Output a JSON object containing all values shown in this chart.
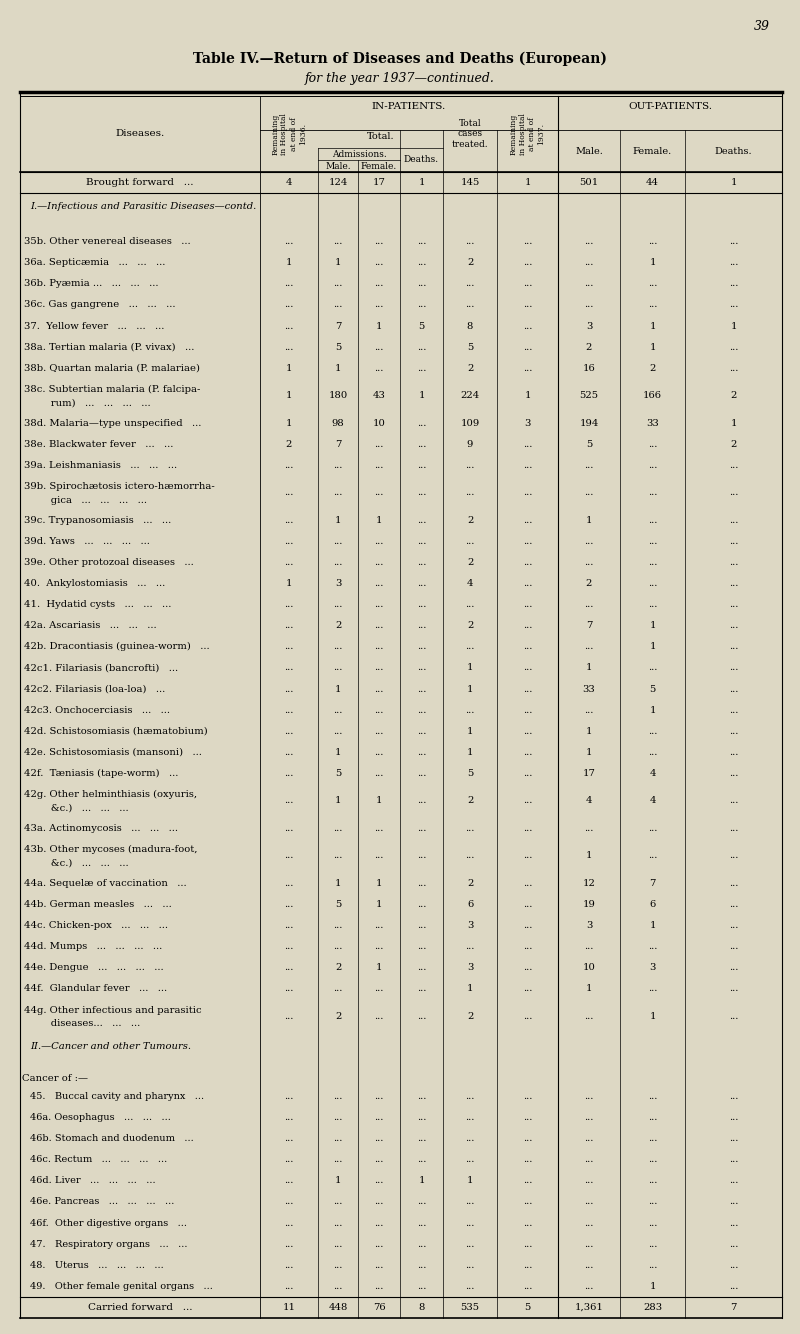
{
  "page_number": "39",
  "title_line1": "Table IV.—Return of Diseases and Deaths (European)",
  "title_line2": "for the year 1937—continued.",
  "bg_color": "#ddd8c4",
  "rows": [
    {
      "text": "Brought forward",
      "suffix": "...",
      "type": "forward",
      "rem36": "4",
      "male": "124",
      "female": "17",
      "deaths": "1",
      "total": "145",
      "rem37": "1",
      "op_male": "501",
      "op_female": "44",
      "op_deaths": "1"
    },
    {
      "text": "I.—Infectious and Parasitic Diseases—contd.",
      "line2": "",
      "type": "section",
      "rem36": "",
      "male": "",
      "female": "",
      "deaths": "",
      "total": "",
      "rem37": "",
      "op_male": "",
      "op_female": "",
      "op_deaths": ""
    },
    {
      "text": "35b. Other venereal diseases   ...",
      "type": "normal",
      "rem36": "...",
      "male": "...",
      "female": "...",
      "deaths": "...",
      "total": "...",
      "rem37": "...",
      "op_male": "...",
      "op_female": "...",
      "op_deaths": "..."
    },
    {
      "text": "36a. Septicæmia   ...   ...   ...",
      "type": "normal",
      "rem36": "1",
      "male": "1",
      "female": "...",
      "deaths": "...",
      "total": "2",
      "rem37": "...",
      "op_male": "...",
      "op_female": "1",
      "op_deaths": "..."
    },
    {
      "text": "36b. Pyæmia ...   ...   ...   ...",
      "type": "normal",
      "rem36": "...",
      "male": "...",
      "female": "...",
      "deaths": "...",
      "total": "...",
      "rem37": "...",
      "op_male": "...",
      "op_female": "...",
      "op_deaths": "..."
    },
    {
      "text": "36c. Gas gangrene   ...   ...   ...",
      "type": "normal",
      "rem36": "...",
      "male": "...",
      "female": "...",
      "deaths": "...",
      "total": "...",
      "rem37": "...",
      "op_male": "...",
      "op_female": "...",
      "op_deaths": "..."
    },
    {
      "text": "37.  Yellow fever   ...   ...   ...",
      "type": "normal",
      "rem36": "...",
      "male": "7",
      "female": "1",
      "deaths": "5",
      "total": "8",
      "rem37": "...",
      "op_male": "3",
      "op_female": "1",
      "op_deaths": "1"
    },
    {
      "text": "38a. Tertian malaria (P. vivax)   ...",
      "type": "normal",
      "rem36": "...",
      "male": "5",
      "female": "...",
      "deaths": "...",
      "total": "5",
      "rem37": "...",
      "op_male": "2",
      "op_female": "1",
      "op_deaths": "..."
    },
    {
      "text": "38b. Quartan malaria (P. malariae)",
      "type": "normal",
      "rem36": "1",
      "male": "1",
      "female": "...",
      "deaths": "...",
      "total": "2",
      "rem37": "...",
      "op_male": "16",
      "op_female": "2",
      "op_deaths": "..."
    },
    {
      "text": "38c. Subtertian malaria (P. falcipa-",
      "line2": "      rum)   ...   ...   ...   ...",
      "type": "normal2",
      "rem36": "1",
      "male": "180",
      "female": "43",
      "deaths": "1",
      "total": "224",
      "rem37": "1",
      "op_male": "525",
      "op_female": "166",
      "op_deaths": "2"
    },
    {
      "text": "38d. Malaria—type unspecified   ...",
      "type": "normal",
      "rem36": "1",
      "male": "98",
      "female": "10",
      "deaths": "...",
      "total": "109",
      "rem37": "3",
      "op_male": "194",
      "op_female": "33",
      "op_deaths": "1"
    },
    {
      "text": "38e. Blackwater fever   ...   ...",
      "type": "normal",
      "rem36": "2",
      "male": "7",
      "female": "...",
      "deaths": "...",
      "total": "9",
      "rem37": "...",
      "op_male": "5",
      "op_female": "...",
      "op_deaths": "2"
    },
    {
      "text": "39a. Leishmaniasis   ...   ...   ...",
      "type": "normal",
      "rem36": "...",
      "male": "...",
      "female": "...",
      "deaths": "...",
      "total": "...",
      "rem37": "...",
      "op_male": "...",
      "op_female": "...",
      "op_deaths": "..."
    },
    {
      "text": "39b. Spirochætosis ictero-hæmorrha-",
      "line2": "      gica   ...   ...   ...   ...",
      "type": "normal2",
      "rem36": "...",
      "male": "...",
      "female": "...",
      "deaths": "...",
      "total": "...",
      "rem37": "...",
      "op_male": "...",
      "op_female": "...",
      "op_deaths": "..."
    },
    {
      "text": "39c. Trypanosomiasis   ...   ...",
      "type": "normal",
      "rem36": "...",
      "male": "1",
      "female": "1",
      "deaths": "...",
      "total": "2",
      "rem37": "...",
      "op_male": "1",
      "op_female": "...",
      "op_deaths": "..."
    },
    {
      "text": "39d. Yaws   ...   ...   ...   ...",
      "type": "normal",
      "rem36": "...",
      "male": "...",
      "female": "...",
      "deaths": "...",
      "total": "...",
      "rem37": "...",
      "op_male": "...",
      "op_female": "...",
      "op_deaths": "..."
    },
    {
      "text": "39e. Other protozoal diseases   ...",
      "type": "normal",
      "rem36": "...",
      "male": "...",
      "female": "...",
      "deaths": "...",
      "total": "2",
      "rem37": "...",
      "op_male": "...",
      "op_female": "...",
      "op_deaths": "..."
    },
    {
      "text": "40.  Ankylostomiasis   ...   ...",
      "type": "normal",
      "rem36": "1",
      "male": "3",
      "female": "...",
      "deaths": "...",
      "total": "4",
      "rem37": "...",
      "op_male": "2",
      "op_female": "...",
      "op_deaths": "..."
    },
    {
      "text": "41.  Hydatid cysts   ...   ...   ...",
      "type": "normal",
      "rem36": "...",
      "male": "...",
      "female": "...",
      "deaths": "...",
      "total": "...",
      "rem37": "...",
      "op_male": "...",
      "op_female": "...",
      "op_deaths": "..."
    },
    {
      "text": "42a. Ascariasis   ...   ...   ...",
      "type": "normal",
      "rem36": "...",
      "male": "2",
      "female": "...",
      "deaths": "...",
      "total": "2",
      "rem37": "...",
      "op_male": "7",
      "op_female": "1",
      "op_deaths": "..."
    },
    {
      "text": "42b. Dracontiasis (guinea-worm)   ...",
      "type": "normal",
      "rem36": "...",
      "male": "...",
      "female": "...",
      "deaths": "...",
      "total": "...",
      "rem37": "...",
      "op_male": "...",
      "op_female": "1",
      "op_deaths": "..."
    },
    {
      "text": "42c1. Filariasis (bancrofti)   ...",
      "type": "normal",
      "rem36": "...",
      "male": "...",
      "female": "...",
      "deaths": "...",
      "total": "1",
      "rem37": "...",
      "op_male": "1",
      "op_female": "...",
      "op_deaths": "..."
    },
    {
      "text": "42c2. Filariasis (loa-loa)   ...",
      "type": "normal",
      "rem36": "...",
      "male": "1",
      "female": "...",
      "deaths": "...",
      "total": "1",
      "rem37": "...",
      "op_male": "33",
      "op_female": "5",
      "op_deaths": "..."
    },
    {
      "text": "42c3. Onchocerciasis   ...   ...",
      "type": "normal",
      "rem36": "...",
      "male": "...",
      "female": "...",
      "deaths": "...",
      "total": "...",
      "rem37": "...",
      "op_male": "...",
      "op_female": "1",
      "op_deaths": "..."
    },
    {
      "text": "42d. Schistosomiasis (hæmatobium)",
      "type": "normal",
      "rem36": "...",
      "male": "...",
      "female": "...",
      "deaths": "...",
      "total": "1",
      "rem37": "...",
      "op_male": "1",
      "op_female": "...",
      "op_deaths": "..."
    },
    {
      "text": "42e. Schistosomiasis (mansoni)   ...",
      "type": "normal",
      "rem36": "...",
      "male": "1",
      "female": "...",
      "deaths": "...",
      "total": "1",
      "rem37": "...",
      "op_male": "1",
      "op_female": "...",
      "op_deaths": "..."
    },
    {
      "text": "42f.  Tæniasis (tape-worm)   ...",
      "type": "normal",
      "rem36": "...",
      "male": "5",
      "female": "...",
      "deaths": "...",
      "total": "5",
      "rem37": "...",
      "op_male": "17",
      "op_female": "4",
      "op_deaths": "..."
    },
    {
      "text": "42g. Other helminthiasis (oxyuris,",
      "line2": "      &c.)   ...   ...   ...",
      "type": "normal2",
      "rem36": "...",
      "male": "1",
      "female": "1",
      "deaths": "...",
      "total": "2",
      "rem37": "...",
      "op_male": "4",
      "op_female": "4",
      "op_deaths": "..."
    },
    {
      "text": "43a. Actinomycosis   ...   ...   ...",
      "type": "normal",
      "rem36": "...",
      "male": "...",
      "female": "...",
      "deaths": "...",
      "total": "...",
      "rem37": "...",
      "op_male": "...",
      "op_female": "...",
      "op_deaths": "..."
    },
    {
      "text": "43b. Other mycoses (madura-foot,",
      "line2": "      &c.)   ...   ...   ...",
      "type": "normal2",
      "rem36": "...",
      "male": "...",
      "female": "...",
      "deaths": "...",
      "total": "...",
      "rem37": "...",
      "op_male": "1",
      "op_female": "...",
      "op_deaths": "..."
    },
    {
      "text": "44a. Sequelæ of vaccination   ...",
      "type": "normal",
      "rem36": "...",
      "male": "1",
      "female": "1",
      "deaths": "...",
      "total": "2",
      "rem37": "...",
      "op_male": "12",
      "op_female": "7",
      "op_deaths": "..."
    },
    {
      "text": "44b. German measles   ...   ...",
      "type": "normal",
      "rem36": "...",
      "male": "5",
      "female": "1",
      "deaths": "...",
      "total": "6",
      "rem37": "...",
      "op_male": "19",
      "op_female": "6",
      "op_deaths": "..."
    },
    {
      "text": "44c. Chicken-pox   ...   ...   ...",
      "type": "normal",
      "rem36": "...",
      "male": "...",
      "female": "...",
      "deaths": "...",
      "total": "3",
      "rem37": "...",
      "op_male": "3",
      "op_female": "1",
      "op_deaths": "..."
    },
    {
      "text": "44d. Mumps   ...   ...   ...   ...",
      "type": "normal",
      "rem36": "...",
      "male": "...",
      "female": "...",
      "deaths": "...",
      "total": "...",
      "rem37": "...",
      "op_male": "...",
      "op_female": "...",
      "op_deaths": "..."
    },
    {
      "text": "44e. Dengue   ...   ...   ...   ...",
      "type": "normal",
      "rem36": "...",
      "male": "2",
      "female": "1",
      "deaths": "...",
      "total": "3",
      "rem37": "...",
      "op_male": "10",
      "op_female": "3",
      "op_deaths": "..."
    },
    {
      "text": "44f.  Glandular fever   ...   ...",
      "type": "normal",
      "rem36": "...",
      "male": "...",
      "female": "...",
      "deaths": "...",
      "total": "1",
      "rem37": "...",
      "op_male": "1",
      "op_female": "...",
      "op_deaths": "..."
    },
    {
      "text": "44g. Other infectious and parasitic",
      "line2": "      diseases...   ...   ...",
      "type": "normal2",
      "rem36": "...",
      "male": "2",
      "female": "...",
      "deaths": "...",
      "total": "2",
      "rem37": "...",
      "op_male": "...",
      "op_female": "1",
      "op_deaths": "..."
    },
    {
      "text": "II.—Cancer and other Tumours.",
      "line2": "",
      "type": "section",
      "rem36": "",
      "male": "",
      "female": "",
      "deaths": "",
      "total": "",
      "rem37": "",
      "op_male": "",
      "op_female": "",
      "op_deaths": ""
    },
    {
      "text": "Cancer of :—",
      "type": "cancer",
      "rem36": "",
      "male": "",
      "female": "",
      "deaths": "",
      "total": "",
      "rem37": "",
      "op_male": "",
      "op_female": "",
      "op_deaths": ""
    },
    {
      "text": "45.   Buccal cavity and pharynx   ...",
      "type": "indent",
      "rem36": "...",
      "male": "...",
      "female": "...",
      "deaths": "...",
      "total": "...",
      "rem37": "...",
      "op_male": "...",
      "op_female": "...",
      "op_deaths": "..."
    },
    {
      "text": "46a. Oesophagus   ...   ...   ...",
      "type": "indent",
      "rem36": "...",
      "male": "...",
      "female": "...",
      "deaths": "...",
      "total": "...",
      "rem37": "...",
      "op_male": "...",
      "op_female": "...",
      "op_deaths": "..."
    },
    {
      "text": "46b. Stomach and duodenum   ...",
      "type": "indent",
      "rem36": "...",
      "male": "...",
      "female": "...",
      "deaths": "...",
      "total": "...",
      "rem37": "...",
      "op_male": "...",
      "op_female": "...",
      "op_deaths": "..."
    },
    {
      "text": "46c. Rectum   ...   ...   ...   ...",
      "type": "indent",
      "rem36": "...",
      "male": "...",
      "female": "...",
      "deaths": "...",
      "total": "...",
      "rem37": "...",
      "op_male": "...",
      "op_female": "...",
      "op_deaths": "..."
    },
    {
      "text": "46d. Liver   ...   ...   ...   ...",
      "type": "indent",
      "rem36": "...",
      "male": "1",
      "female": "...",
      "deaths": "1",
      "total": "1",
      "rem37": "...",
      "op_male": "...",
      "op_female": "...",
      "op_deaths": "..."
    },
    {
      "text": "46e. Pancreas   ...   ...   ...   ...",
      "type": "indent",
      "rem36": "...",
      "male": "...",
      "female": "...",
      "deaths": "...",
      "total": "...",
      "rem37": "...",
      "op_male": "...",
      "op_female": "...",
      "op_deaths": "..."
    },
    {
      "text": "46f.  Other digestive organs   ...",
      "type": "indent",
      "rem36": "...",
      "male": "...",
      "female": "...",
      "deaths": "...",
      "total": "...",
      "rem37": "...",
      "op_male": "...",
      "op_female": "...",
      "op_deaths": "..."
    },
    {
      "text": "47.   Respiratory organs   ...   ...",
      "type": "indent",
      "rem36": "...",
      "male": "...",
      "female": "...",
      "deaths": "...",
      "total": "...",
      "rem37": "...",
      "op_male": "...",
      "op_female": "...",
      "op_deaths": "..."
    },
    {
      "text": "48.   Uterus   ...   ...   ...   ...",
      "type": "indent",
      "rem36": "...",
      "male": "...",
      "female": "...",
      "deaths": "...",
      "total": "...",
      "rem37": "...",
      "op_male": "...",
      "op_female": "...",
      "op_deaths": "..."
    },
    {
      "text": "49.   Other female genital organs   ...",
      "type": "indent",
      "rem36": "...",
      "male": "...",
      "female": "...",
      "deaths": "...",
      "total": "...",
      "rem37": "...",
      "op_male": "...",
      "op_female": "1",
      "op_deaths": "..."
    },
    {
      "text": "Carried forward",
      "suffix": "...",
      "type": "forward",
      "rem36": "11",
      "male": "448",
      "female": "76",
      "deaths": "8",
      "total": "535",
      "rem37": "5",
      "op_male": "1,361",
      "op_female": "283",
      "op_deaths": "7"
    }
  ]
}
